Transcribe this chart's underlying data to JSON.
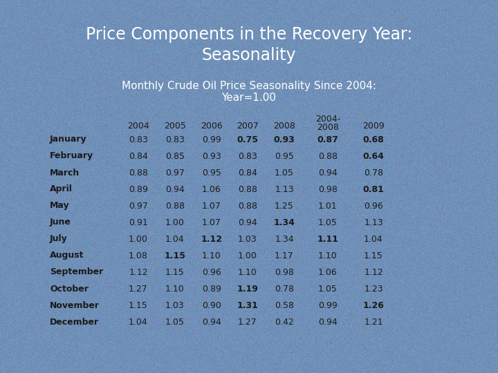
{
  "title_line1": "Price Components in the Recovery Year:",
  "title_line2": "Seasonality",
  "subtitle_line1": "Monthly Crude Oil Price Seasonality Since 2004:",
  "subtitle_line2": "Year=1.00",
  "col_headers": [
    "2004",
    "2005",
    "2006",
    "2007",
    "2008",
    "2004-",
    "2008",
    "2009"
  ],
  "months": [
    "January",
    "February",
    "March",
    "April",
    "May",
    "June",
    "July",
    "August",
    "September",
    "October",
    "November",
    "December"
  ],
  "data": [
    [
      0.83,
      0.83,
      0.99,
      0.75,
      0.93,
      0.87,
      0.68
    ],
    [
      0.84,
      0.85,
      0.93,
      0.83,
      0.95,
      0.88,
      0.64
    ],
    [
      0.88,
      0.97,
      0.95,
      0.84,
      1.05,
      0.94,
      0.78
    ],
    [
      0.89,
      0.94,
      1.06,
      0.88,
      1.13,
      0.98,
      0.81
    ],
    [
      0.97,
      0.88,
      1.07,
      0.88,
      1.25,
      1.01,
      0.96
    ],
    [
      0.91,
      1.0,
      1.07,
      0.94,
      1.34,
      1.05,
      1.13
    ],
    [
      1.0,
      1.04,
      1.12,
      1.03,
      1.34,
      1.11,
      1.04
    ],
    [
      1.08,
      1.15,
      1.1,
      1.0,
      1.17,
      1.1,
      1.15
    ],
    [
      1.12,
      1.15,
      0.96,
      1.1,
      0.98,
      1.06,
      1.12
    ],
    [
      1.27,
      1.1,
      0.89,
      1.19,
      0.78,
      1.05,
      1.23
    ],
    [
      1.15,
      1.03,
      0.9,
      1.31,
      0.58,
      0.99,
      1.26
    ],
    [
      1.04,
      1.05,
      0.94,
      1.27,
      0.42,
      0.94,
      1.21
    ]
  ],
  "bold_cells": {
    "0": [
      3,
      4,
      5,
      6
    ],
    "1": [
      6
    ],
    "2": [],
    "3": [
      6
    ],
    "4": [],
    "5": [
      4
    ],
    "6": [
      2,
      5
    ],
    "7": [
      1
    ],
    "8": [],
    "9": [
      3
    ],
    "10": [
      3,
      6
    ],
    "11": []
  },
  "bg_color": "#7090b8",
  "title_color": "#ffffff",
  "text_color": "#1a1a1a",
  "title_fontsize": 17,
  "subtitle_fontsize": 11,
  "table_fontsize": 9
}
